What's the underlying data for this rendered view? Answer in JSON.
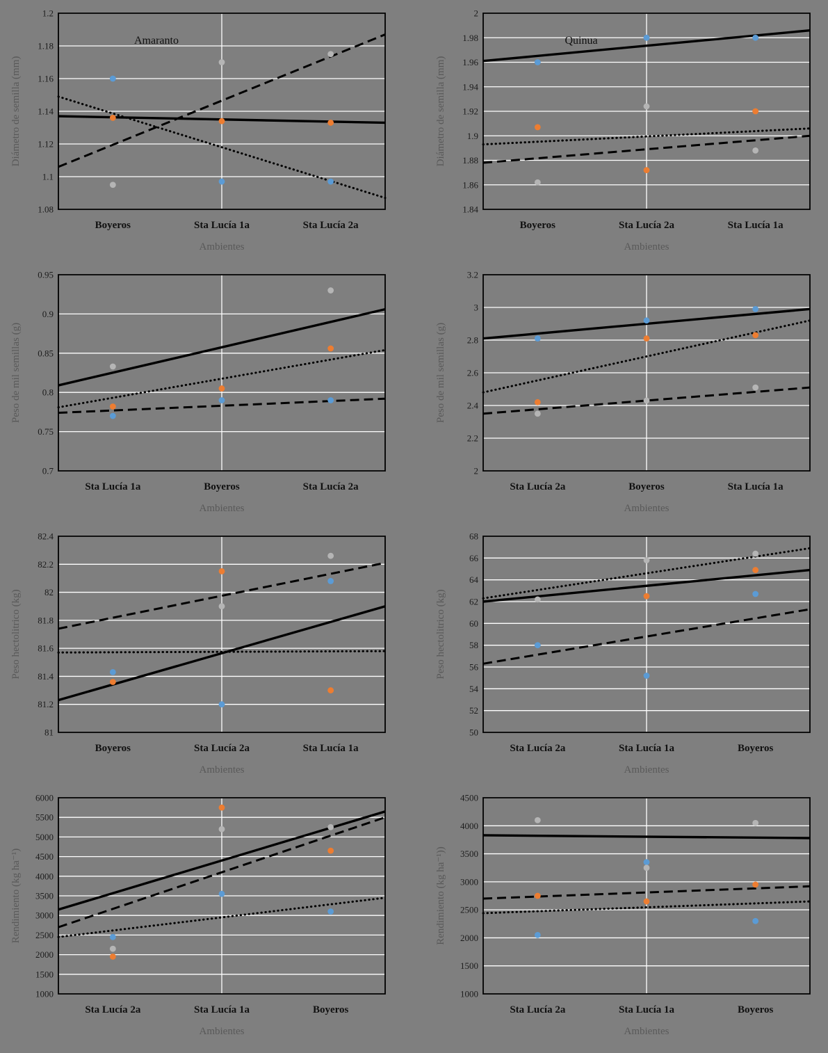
{
  "page": {
    "background": "#7f7f7f"
  },
  "colors": {
    "marker_blue": "#5b9bd5",
    "marker_orange": "#ed7d31",
    "marker_gray": "#b5b5b5",
    "trend_line": "#000000",
    "grid": "#ffffff",
    "tick_text": "#1c1c1c",
    "axis_title_text": "#595959"
  },
  "chart_data": [
    {
      "type": "scatter",
      "title": "Amaranto",
      "xlabel": "Ambientes",
      "ylabel": "Diámetro de semilla (mm)",
      "categories": [
        "Boyeros",
        "Sta Lucía 1a",
        "Sta Lucía 2a"
      ],
      "ylim": [
        1.08,
        1.2
      ],
      "yticks": [
        "1.08",
        "1.1",
        "1.12",
        "1.14",
        "1.16",
        "1.18",
        "1.2"
      ],
      "grid": true,
      "legend": "none",
      "trendlines": [
        {
          "style": "dotted",
          "start": 1.149,
          "end": 1.087
        },
        {
          "style": "dashed",
          "start": 1.106,
          "end": 1.187
        },
        {
          "style": "solid",
          "start": 1.137,
          "end": 1.133
        }
      ],
      "series": [
        {
          "name": "blue",
          "color_key": "marker_blue",
          "values": [
            1.16,
            1.097,
            1.097
          ]
        },
        {
          "name": "orange",
          "color_key": "marker_orange",
          "values": [
            1.136,
            1.134,
            1.133
          ]
        },
        {
          "name": "gray",
          "color_key": "marker_gray",
          "values": [
            1.095,
            1.17,
            1.175
          ]
        }
      ]
    },
    {
      "type": "scatter",
      "title": "Quinua",
      "xlabel": "Ambientes",
      "ylabel": "Diámetro de semilla (mm)",
      "categories": [
        "Boyeros",
        "Sta Lucía 2a",
        "Sta Lucía 1a"
      ],
      "ylim": [
        1.84,
        2.0
      ],
      "yticks": [
        "1.84",
        "1.86",
        "1.88",
        "1.9",
        "1.92",
        "1.94",
        "1.96",
        "1.98",
        "2"
      ],
      "grid": true,
      "legend": "none",
      "trendlines": [
        {
          "style": "dotted",
          "start": 1.893,
          "end": 1.906
        },
        {
          "style": "dashed",
          "start": 1.878,
          "end": 1.9
        },
        {
          "style": "solid",
          "start": 1.961,
          "end": 1.986
        }
      ],
      "series": [
        {
          "name": "blue",
          "color_key": "marker_blue",
          "values": [
            1.96,
            1.98,
            1.98
          ]
        },
        {
          "name": "orange",
          "color_key": "marker_orange",
          "values": [
            1.907,
            1.872,
            1.92
          ]
        },
        {
          "name": "gray",
          "color_key": "marker_gray",
          "values": [
            1.862,
            1.924,
            1.888
          ]
        }
      ]
    },
    {
      "type": "scatter",
      "title": "",
      "xlabel": "Ambientes",
      "ylabel": "Peso de mil semillas (g)",
      "categories": [
        "Sta Lucía 1a",
        "Boyeros",
        "Sta Lucía 2a"
      ],
      "ylim": [
        0.7,
        0.95
      ],
      "yticks": [
        "0.7",
        "0.75",
        "0.8",
        "0.85",
        "0.9",
        "0.95"
      ],
      "grid": true,
      "legend": "none",
      "trendlines": [
        {
          "style": "dotted",
          "start": 0.781,
          "end": 0.854
        },
        {
          "style": "dashed",
          "start": 0.774,
          "end": 0.792
        },
        {
          "style": "solid",
          "start": 0.809,
          "end": 0.906
        }
      ],
      "series": [
        {
          "name": "blue",
          "color_key": "marker_blue",
          "values": [
            0.77,
            0.79,
            0.79
          ]
        },
        {
          "name": "orange",
          "color_key": "marker_orange",
          "values": [
            0.782,
            0.805,
            0.856
          ]
        },
        {
          "name": "gray",
          "color_key": "marker_gray",
          "values": [
            0.833,
            null,
            0.93
          ]
        }
      ]
    },
    {
      "type": "scatter",
      "title": "",
      "xlabel": "Ambientes",
      "ylabel": "Peso de mil semillas (g)",
      "categories": [
        "Sta Lucía 2a",
        "Boyeros",
        "Sta Lucía 1a"
      ],
      "ylim": [
        2.0,
        3.2
      ],
      "yticks": [
        "2",
        "2.2",
        "2.4",
        "2.6",
        "2.8",
        "3",
        "3.2"
      ],
      "grid": true,
      "legend": "none",
      "trendlines": [
        {
          "style": "dotted",
          "start": 2.48,
          "end": 2.92
        },
        {
          "style": "dashed",
          "start": 2.35,
          "end": 2.51
        },
        {
          "style": "solid",
          "start": 2.81,
          "end": 2.99
        }
      ],
      "series": [
        {
          "name": "blue",
          "color_key": "marker_blue",
          "values": [
            2.81,
            2.92,
            2.99
          ]
        },
        {
          "name": "orange",
          "color_key": "marker_orange",
          "values": [
            2.42,
            2.81,
            2.83
          ]
        },
        {
          "name": "gray",
          "color_key": "marker_gray",
          "values": [
            2.35,
            2.43,
            2.51
          ]
        }
      ]
    },
    {
      "type": "scatter",
      "title": "",
      "xlabel": "Ambientes",
      "ylabel": "Peso hectolitrico (kg)",
      "categories": [
        "Boyeros",
        "Sta Lucía 2a",
        "Sta Lucía 1a"
      ],
      "ylim": [
        81.0,
        82.4
      ],
      "yticks": [
        "81",
        "81.2",
        "81.4",
        "81.6",
        "81.8",
        "82",
        "82.2",
        "82.4"
      ],
      "grid": true,
      "legend": "none",
      "trendlines": [
        {
          "style": "dotted",
          "start": 81.57,
          "end": 81.58
        },
        {
          "style": "dashed",
          "start": 81.74,
          "end": 82.21
        },
        {
          "style": "solid",
          "start": 81.23,
          "end": 81.9
        }
      ],
      "series": [
        {
          "name": "blue",
          "color_key": "marker_blue",
          "values": [
            81.43,
            81.2,
            82.08
          ]
        },
        {
          "name": "orange",
          "color_key": "marker_orange",
          "values": [
            81.36,
            82.15,
            81.3
          ]
        },
        {
          "name": "gray",
          "color_key": "marker_gray",
          "values": [
            null,
            81.9,
            82.26
          ]
        }
      ]
    },
    {
      "type": "scatter",
      "title": "",
      "xlabel": "Ambientes",
      "ylabel": "Peso hectolitrico (kg)",
      "categories": [
        "Sta Lucía 2a",
        "Sta Lucía 1a",
        "Boyeros"
      ],
      "ylim": [
        50,
        68
      ],
      "yticks": [
        "50",
        "52",
        "54",
        "56",
        "58",
        "60",
        "62",
        "64",
        "66",
        "68"
      ],
      "grid": true,
      "legend": "none",
      "trendlines": [
        {
          "style": "dotted",
          "start": 62.3,
          "end": 66.9
        },
        {
          "style": "dashed",
          "start": 56.3,
          "end": 61.3
        },
        {
          "style": "solid",
          "start": 62.0,
          "end": 64.9
        }
      ],
      "series": [
        {
          "name": "blue",
          "color_key": "marker_blue",
          "values": [
            58.0,
            55.2,
            62.7
          ]
        },
        {
          "name": "orange",
          "color_key": "marker_orange",
          "values": [
            null,
            62.5,
            64.9
          ]
        },
        {
          "name": "gray",
          "color_key": "marker_gray",
          "values": [
            62.2,
            65.8,
            66.4
          ]
        }
      ]
    },
    {
      "type": "scatter",
      "title": "",
      "xlabel": "Ambientes",
      "ylabel": "Rendimiento (kg ha⁻¹)",
      "categories": [
        "Sta Lucía 2a",
        "Sta Lucía 1a",
        "Boyeros"
      ],
      "ylim": [
        1000,
        6000
      ],
      "yticks": [
        "1000",
        "1500",
        "2000",
        "2500",
        "3000",
        "3500",
        "4000",
        "4500",
        "5000",
        "5500",
        "6000"
      ],
      "grid": true,
      "legend": "none",
      "trendlines": [
        {
          "style": "dotted",
          "start": 2450,
          "end": 3450
        },
        {
          "style": "dashed",
          "start": 2700,
          "end": 5500
        },
        {
          "style": "solid",
          "start": 3150,
          "end": 5650
        }
      ],
      "series": [
        {
          "name": "blue",
          "color_key": "marker_blue",
          "values": [
            2450,
            3550,
            3100
          ]
        },
        {
          "name": "orange",
          "color_key": "marker_orange",
          "values": [
            1950,
            5750,
            4650
          ]
        },
        {
          "name": "gray",
          "color_key": "marker_gray",
          "values": [
            2150,
            5200,
            5250
          ]
        }
      ]
    },
    {
      "type": "scatter",
      "title": "",
      "xlabel": "Ambientes",
      "ylabel": "Rendimiento (kg ha⁻¹))",
      "categories": [
        "Sta Lucía 2a",
        "Sta Lucía 1a",
        "Boyeros"
      ],
      "ylim": [
        1000,
        4500
      ],
      "yticks": [
        "1000",
        "1500",
        "2000",
        "2500",
        "3000",
        "3500",
        "4000",
        "4500"
      ],
      "grid": true,
      "legend": "none",
      "trendlines": [
        {
          "style": "dotted",
          "start": 2440,
          "end": 2650
        },
        {
          "style": "dashed",
          "start": 2700,
          "end": 2920
        },
        {
          "style": "solid",
          "start": 3830,
          "end": 3780
        }
      ],
      "series": [
        {
          "name": "blue",
          "color_key": "marker_blue",
          "values": [
            2050,
            3350,
            2300
          ]
        },
        {
          "name": "orange",
          "color_key": "marker_orange",
          "values": [
            2750,
            2650,
            2950
          ]
        },
        {
          "name": "gray",
          "color_key": "marker_gray",
          "values": [
            4100,
            3250,
            4050
          ]
        }
      ]
    }
  ]
}
